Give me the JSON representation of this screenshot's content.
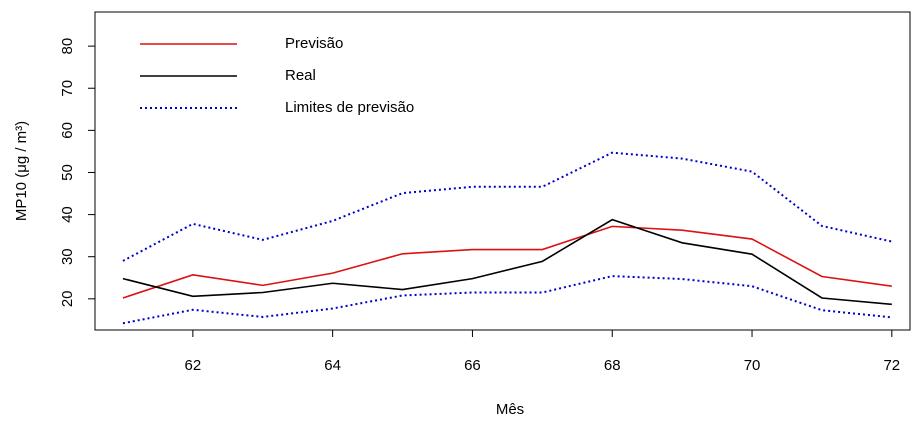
{
  "chart_data": {
    "type": "line",
    "x": [
      61,
      62,
      63,
      64,
      65,
      66,
      67,
      68,
      69,
      70,
      71,
      72
    ],
    "series": [
      {
        "name": "Previsão",
        "color": "#dd1111",
        "values": [
          20.2,
          25.7,
          23.2,
          26.1,
          30.7,
          31.7,
          31.7,
          37.2,
          36.3,
          34.2,
          25.3,
          23.0
        ]
      },
      {
        "name": "Real",
        "color": "#000000",
        "values": [
          24.8,
          20.6,
          21.5,
          23.7,
          22.2,
          24.8,
          28.9,
          38.8,
          33.3,
          30.6,
          20.2,
          18.7
        ]
      },
      {
        "name": "Limites de previsão",
        "color": "#0000cc",
        "dashed": true,
        "values": [
          29.0,
          37.8,
          34.0,
          38.5,
          45.1,
          46.6,
          46.6,
          54.7,
          53.3,
          50.2,
          37.3,
          33.6
        ],
        "lower": [
          14.2,
          17.4,
          15.7,
          17.7,
          20.8,
          21.5,
          21.5,
          25.4,
          24.7,
          23.0,
          17.3,
          15.6
        ]
      }
    ],
    "x_label": "Mês",
    "y_label": "MP10 (μg / m³)",
    "xlim": [
      60.6,
      72.26
    ],
    "xticks": [
      62,
      64,
      66,
      68,
      70,
      72
    ],
    "ylim": [
      12.6,
      88.1
    ],
    "yticks": [
      20,
      30,
      40,
      50,
      60,
      70,
      80
    ],
    "legend": "top-left"
  }
}
